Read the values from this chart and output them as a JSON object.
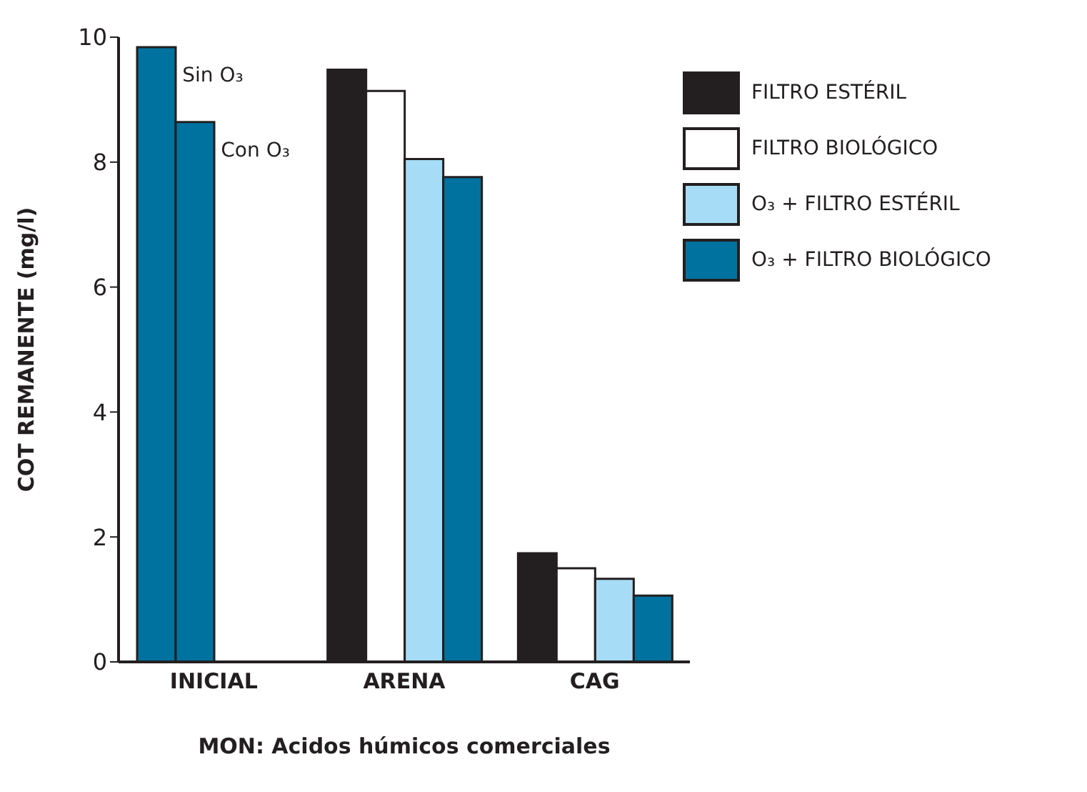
{
  "chart_data": {
    "type": "bar",
    "xlabel": "MON: Acidos húmicos comerciales",
    "ylabel": "COT REMANENTE (mg/l)",
    "categories": [
      "INICIAL",
      "ARENA",
      "CAG"
    ],
    "series": [
      {
        "name": "FILTRO ESTÉRIL",
        "color": "#231f20",
        "colors": [
          "#0072a0",
          "#231f20",
          "#231f20"
        ],
        "values": [
          9.84,
          9.48,
          1.74
        ]
      },
      {
        "name": "FILTRO BIOLÓGICO",
        "color": "#ffffff",
        "colors": [
          "#0072a0",
          "#ffffff",
          "#ffffff"
        ],
        "values": [
          8.64,
          9.14,
          1.5
        ]
      },
      {
        "name": "O₃ + FILTRO ESTÉRIL",
        "color": "#a6dcf5",
        "values": [
          null,
          8.05,
          1.33
        ]
      },
      {
        "name": "O₃ + FILTRO BIOLÓGICO",
        "color": "#0072a0",
        "values": [
          null,
          7.76,
          1.06
        ]
      }
    ],
    "ylim": [
      0,
      10
    ],
    "yticks": [
      0,
      2,
      4,
      6,
      8,
      10
    ],
    "grid": false,
    "legend": "top right",
    "annotations": [
      "Sin O₃",
      "Con O₃"
    ]
  }
}
